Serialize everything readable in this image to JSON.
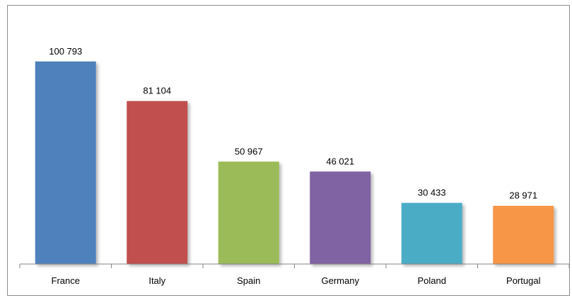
{
  "chart_data": {
    "type": "bar",
    "categories": [
      "France",
      "Italy",
      "Spain",
      "Germany",
      "Poland",
      "Portugal"
    ],
    "values": [
      100793,
      81104,
      50967,
      46021,
      30433,
      28971
    ],
    "value_labels": [
      "100 793",
      "81 104",
      "50 967",
      "46 021",
      "30 433",
      "28 971"
    ],
    "colors": [
      "#4f81bd",
      "#c0504d",
      "#9bbb59",
      "#8064a2",
      "#4bacc6",
      "#f79646"
    ],
    "title": "",
    "xlabel": "",
    "ylabel": "",
    "ylim": [
      0,
      112000
    ],
    "grid": false,
    "legend": "none"
  }
}
